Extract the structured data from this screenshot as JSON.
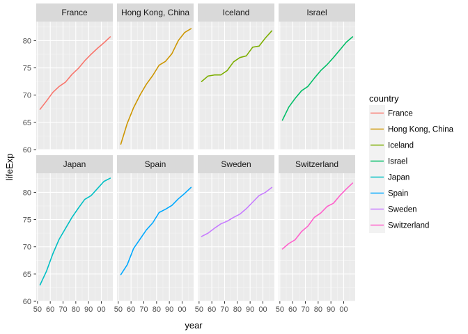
{
  "chart_data": {
    "type": "line",
    "facet_by": "country",
    "layout": "2x4",
    "xlabel": "year",
    "ylabel": "lifeExp",
    "x": [
      1952,
      1957,
      1962,
      1967,
      1972,
      1977,
      1982,
      1987,
      1992,
      1997,
      2002,
      2007
    ],
    "x_ticks": [
      1950,
      1960,
      1970,
      1980,
      1990,
      2000
    ],
    "x_tick_labels": [
      "50",
      "60",
      "70",
      "80",
      "90",
      "00"
    ],
    "y_ticks": [
      60,
      65,
      70,
      75,
      80
    ],
    "y_tick_labels": [
      "60",
      "65",
      "70",
      "75",
      "80"
    ],
    "xlim": [
      1949,
      2009
    ],
    "ylim": [
      60,
      83.5
    ],
    "grid": true,
    "legend": {
      "title": "country",
      "position": "right"
    },
    "series": [
      {
        "name": "France",
        "color": "#F8766D",
        "values": [
          67.4,
          68.9,
          70.5,
          71.6,
          72.4,
          73.8,
          74.9,
          76.3,
          77.5,
          78.6,
          79.6,
          80.7
        ]
      },
      {
        "name": "Hong Kong, China",
        "color": "#CD9600",
        "values": [
          61.0,
          64.8,
          67.7,
          70.0,
          72.0,
          73.6,
          75.5,
          76.2,
          77.6,
          80.0,
          81.5,
          82.2
        ]
      },
      {
        "name": "Iceland",
        "color": "#7CAE00",
        "values": [
          72.5,
          73.5,
          73.7,
          73.7,
          74.5,
          76.1,
          76.9,
          77.2,
          78.8,
          79.0,
          80.5,
          81.8
        ]
      },
      {
        "name": "Israel",
        "color": "#00BE67",
        "values": [
          65.4,
          67.8,
          69.4,
          70.8,
          71.6,
          73.1,
          74.5,
          75.6,
          76.9,
          78.3,
          79.7,
          80.7
        ]
      },
      {
        "name": "Japan",
        "color": "#00BFC4",
        "values": [
          63.0,
          65.5,
          68.7,
          71.4,
          73.4,
          75.4,
          77.1,
          78.7,
          79.4,
          80.7,
          82.0,
          82.6
        ]
      },
      {
        "name": "Spain",
        "color": "#00A9FF",
        "values": [
          64.9,
          66.7,
          69.7,
          71.4,
          73.1,
          74.4,
          76.3,
          76.9,
          77.6,
          78.8,
          79.8,
          80.9
        ]
      },
      {
        "name": "Sweden",
        "color": "#C77CFF",
        "values": [
          71.9,
          72.5,
          73.4,
          74.2,
          74.7,
          75.4,
          76.0,
          77.0,
          78.2,
          79.4,
          80.0,
          80.9
        ]
      },
      {
        "name": "Switzerland",
        "color": "#FF61CC",
        "values": [
          69.6,
          70.6,
          71.3,
          72.8,
          73.8,
          75.4,
          76.2,
          77.4,
          78.0,
          79.4,
          80.6,
          81.7
        ]
      }
    ]
  }
}
